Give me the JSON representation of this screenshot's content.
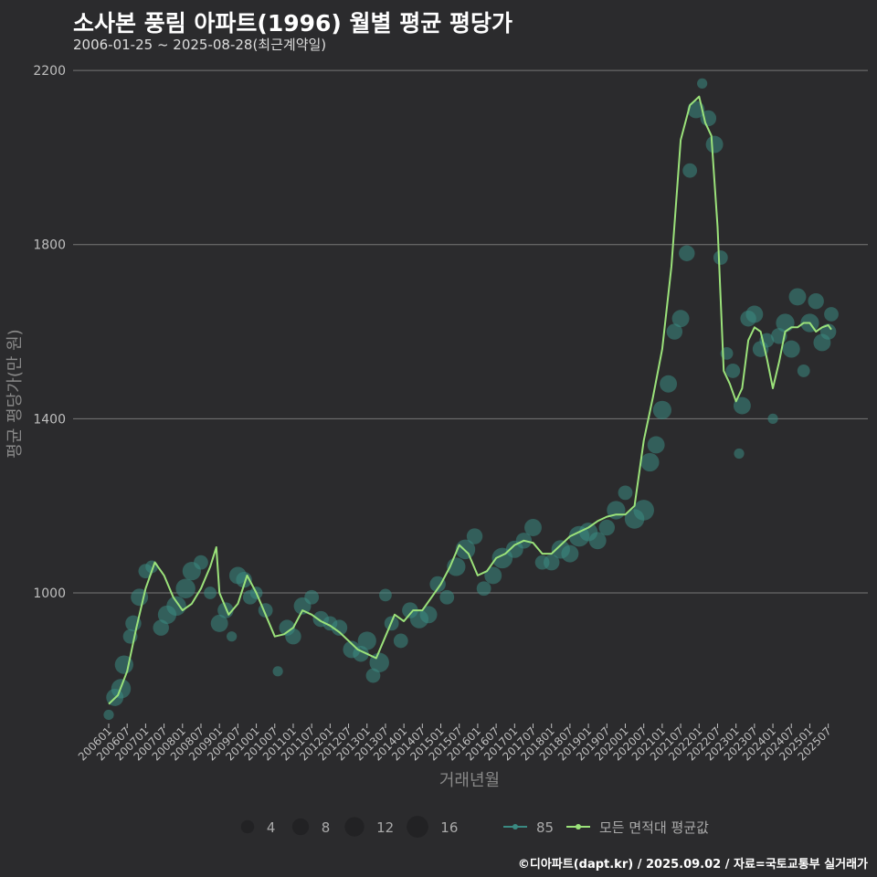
{
  "title": "소사본 풍림 아파트(1996) 월별 평균 평당가",
  "subtitle": "2006-01-25 ~ 2025-08-28(최근계약일)",
  "credit": "©디아파트(dapt.kr) / 2025.09.02 / 자료=국토교통부 실거래가",
  "colors": {
    "background": "#2b2b2d",
    "grid": "#777777",
    "line": "#9be27a",
    "bubble": "#3a8a82"
  },
  "chart_data": {
    "type": "line",
    "title": "소사본 풍림 아파트(1996) 월별 평균 평당가",
    "xlabel": "거래년월",
    "ylabel": "평균 평당가(만 원)",
    "ylim": [
      700,
      2240
    ],
    "yticks": [
      1000,
      1400,
      1800,
      2200
    ],
    "xticks": [
      "200601",
      "200607",
      "200701",
      "200707",
      "200801",
      "200807",
      "200901",
      "200907",
      "201001",
      "201007",
      "201101",
      "201107",
      "201201",
      "201207",
      "201301",
      "201307",
      "201401",
      "201407",
      "201501",
      "201507",
      "201601",
      "201607",
      "201701",
      "201707",
      "201801",
      "201807",
      "201901",
      "201907",
      "202001",
      "202007",
      "202101",
      "202107",
      "202201",
      "202207",
      "202301",
      "202307",
      "202401",
      "202407",
      "202501",
      "202507"
    ],
    "grid": true,
    "legend": {
      "size_title": "",
      "sizes": [
        {
          "label": "4",
          "value": 4
        },
        {
          "label": "8",
          "value": 8
        },
        {
          "label": "12",
          "value": 12
        },
        {
          "label": "16",
          "value": 16
        }
      ],
      "series": [
        {
          "label": "85",
          "kind": "bubble"
        },
        {
          "label": "모든 면적대 평균값",
          "kind": "line"
        }
      ]
    },
    "series": [
      {
        "name": "모든 면적대 평균값",
        "x": [
          "2006-01",
          "2006-04",
          "2006-07",
          "2006-10",
          "2007-01",
          "2007-04",
          "2007-07",
          "2007-10",
          "2008-01",
          "2008-04",
          "2008-07",
          "2008-10",
          "2008-12",
          "2009-01",
          "2009-04",
          "2009-07",
          "2009-10",
          "2010-01",
          "2010-04",
          "2010-07",
          "2010-10",
          "2011-01",
          "2011-04",
          "2011-07",
          "2011-10",
          "2012-01",
          "2012-04",
          "2012-07",
          "2012-10",
          "2013-01",
          "2013-04",
          "2013-07",
          "2013-10",
          "2014-01",
          "2014-04",
          "2014-07",
          "2014-10",
          "2015-01",
          "2015-04",
          "2015-07",
          "2015-10",
          "2016-01",
          "2016-04",
          "2016-07",
          "2016-10",
          "2017-01",
          "2017-04",
          "2017-07",
          "2017-10",
          "2018-01",
          "2018-04",
          "2018-07",
          "2018-10",
          "2019-01",
          "2019-04",
          "2019-07",
          "2019-10",
          "2020-01",
          "2020-04",
          "2020-07",
          "2020-10",
          "2021-01",
          "2021-04",
          "2021-07",
          "2021-10",
          "2022-01",
          "2022-03",
          "2022-05",
          "2022-07",
          "2022-09",
          "2022-11",
          "2023-01",
          "2023-03",
          "2023-05",
          "2023-07",
          "2023-09",
          "2023-11",
          "2024-01",
          "2024-03",
          "2024-05",
          "2024-07",
          "2024-09",
          "2024-11",
          "2025-01",
          "2025-03",
          "2025-05",
          "2025-07",
          "2025-08"
        ],
        "values": [
          745,
          765,
          820,
          920,
          1010,
          1070,
          1040,
          990,
          960,
          975,
          1010,
          1060,
          1105,
          1000,
          950,
          975,
          1040,
          1000,
          950,
          900,
          905,
          920,
          960,
          950,
          935,
          925,
          910,
          890,
          870,
          860,
          850,
          900,
          950,
          935,
          960,
          960,
          990,
          1020,
          1060,
          1110,
          1090,
          1040,
          1050,
          1080,
          1090,
          1110,
          1120,
          1115,
          1090,
          1090,
          1110,
          1130,
          1140,
          1150,
          1165,
          1175,
          1180,
          1180,
          1200,
          1350,
          1450,
          1560,
          1750,
          2040,
          2120,
          2140,
          2080,
          2050,
          1840,
          1510,
          1480,
          1440,
          1470,
          1580,
          1610,
          1600,
          1540,
          1470,
          1530,
          1600,
          1610,
          1610,
          1620,
          1620,
          1600,
          1610,
          1615,
          1605
        ]
      },
      {
        "name": "85",
        "points": [
          {
            "x": "2006-01",
            "y": 720,
            "n": 2
          },
          {
            "x": "2006-03",
            "y": 760,
            "n": 10
          },
          {
            "x": "2006-05",
            "y": 780,
            "n": 14
          },
          {
            "x": "2006-06",
            "y": 835,
            "n": 12
          },
          {
            "x": "2006-08",
            "y": 900,
            "n": 6
          },
          {
            "x": "2006-09",
            "y": 930,
            "n": 8
          },
          {
            "x": "2006-11",
            "y": 990,
            "n": 10
          },
          {
            "x": "2007-01",
            "y": 1050,
            "n": 6
          },
          {
            "x": "2007-03",
            "y": 1060,
            "n": 4
          },
          {
            "x": "2007-06",
            "y": 920,
            "n": 8
          },
          {
            "x": "2007-08",
            "y": 950,
            "n": 12
          },
          {
            "x": "2007-11",
            "y": 970,
            "n": 14
          },
          {
            "x": "2008-02",
            "y": 1010,
            "n": 14
          },
          {
            "x": "2008-04",
            "y": 1050,
            "n": 12
          },
          {
            "x": "2008-07",
            "y": 1070,
            "n": 6
          },
          {
            "x": "2008-10",
            "y": 1000,
            "n": 4
          },
          {
            "x": "2009-01",
            "y": 930,
            "n": 10
          },
          {
            "x": "2009-03",
            "y": 960,
            "n": 8
          },
          {
            "x": "2009-05",
            "y": 900,
            "n": 2
          },
          {
            "x": "2009-07",
            "y": 1040,
            "n": 10
          },
          {
            "x": "2009-09",
            "y": 1030,
            "n": 8
          },
          {
            "x": "2009-11",
            "y": 990,
            "n": 6
          },
          {
            "x": "2010-01",
            "y": 1000,
            "n": 4
          },
          {
            "x": "2010-04",
            "y": 960,
            "n": 6
          },
          {
            "x": "2010-08",
            "y": 820,
            "n": 2
          },
          {
            "x": "2010-11",
            "y": 920,
            "n": 8
          },
          {
            "x": "2011-01",
            "y": 900,
            "n": 8
          },
          {
            "x": "2011-04",
            "y": 970,
            "n": 10
          },
          {
            "x": "2011-07",
            "y": 990,
            "n": 6
          },
          {
            "x": "2011-10",
            "y": 940,
            "n": 8
          },
          {
            "x": "2012-01",
            "y": 930,
            "n": 6
          },
          {
            "x": "2012-04",
            "y": 920,
            "n": 8
          },
          {
            "x": "2012-08",
            "y": 870,
            "n": 10
          },
          {
            "x": "2012-11",
            "y": 860,
            "n": 8
          },
          {
            "x": "2013-01",
            "y": 890,
            "n": 12
          },
          {
            "x": "2013-03",
            "y": 810,
            "n": 6
          },
          {
            "x": "2013-05",
            "y": 840,
            "n": 14
          },
          {
            "x": "2013-07",
            "y": 995,
            "n": 4
          },
          {
            "x": "2013-09",
            "y": 930,
            "n": 6
          },
          {
            "x": "2013-12",
            "y": 890,
            "n": 6
          },
          {
            "x": "2014-03",
            "y": 960,
            "n": 8
          },
          {
            "x": "2014-06",
            "y": 940,
            "n": 12
          },
          {
            "x": "2014-09",
            "y": 950,
            "n": 10
          },
          {
            "x": "2014-12",
            "y": 1020,
            "n": 8
          },
          {
            "x": "2015-03",
            "y": 990,
            "n": 6
          },
          {
            "x": "2015-06",
            "y": 1060,
            "n": 12
          },
          {
            "x": "2015-09",
            "y": 1100,
            "n": 14
          },
          {
            "x": "2015-12",
            "y": 1130,
            "n": 8
          },
          {
            "x": "2016-03",
            "y": 1010,
            "n": 6
          },
          {
            "x": "2016-06",
            "y": 1040,
            "n": 10
          },
          {
            "x": "2016-09",
            "y": 1080,
            "n": 16
          },
          {
            "x": "2017-01",
            "y": 1100,
            "n": 10
          },
          {
            "x": "2017-04",
            "y": 1120,
            "n": 8
          },
          {
            "x": "2017-07",
            "y": 1150,
            "n": 10
          },
          {
            "x": "2017-10",
            "y": 1070,
            "n": 6
          },
          {
            "x": "2018-01",
            "y": 1070,
            "n": 8
          },
          {
            "x": "2018-04",
            "y": 1100,
            "n": 12
          },
          {
            "x": "2018-07",
            "y": 1090,
            "n": 10
          },
          {
            "x": "2018-10",
            "y": 1130,
            "n": 16
          },
          {
            "x": "2019-01",
            "y": 1140,
            "n": 12
          },
          {
            "x": "2019-04",
            "y": 1120,
            "n": 10
          },
          {
            "x": "2019-07",
            "y": 1150,
            "n": 8
          },
          {
            "x": "2019-10",
            "y": 1190,
            "n": 12
          },
          {
            "x": "2020-01",
            "y": 1230,
            "n": 6
          },
          {
            "x": "2020-04",
            "y": 1170,
            "n": 14
          },
          {
            "x": "2020-07",
            "y": 1190,
            "n": 16
          },
          {
            "x": "2020-09",
            "y": 1300,
            "n": 12
          },
          {
            "x": "2020-11",
            "y": 1340,
            "n": 10
          },
          {
            "x": "2021-01",
            "y": 1420,
            "n": 12
          },
          {
            "x": "2021-03",
            "y": 1480,
            "n": 10
          },
          {
            "x": "2021-05",
            "y": 1600,
            "n": 8
          },
          {
            "x": "2021-07",
            "y": 1630,
            "n": 10
          },
          {
            "x": "2021-09",
            "y": 1780,
            "n": 8
          },
          {
            "x": "2021-10",
            "y": 1970,
            "n": 6
          },
          {
            "x": "2021-12",
            "y": 2110,
            "n": 10
          },
          {
            "x": "2022-02",
            "y": 2170,
            "n": 2
          },
          {
            "x": "2022-04",
            "y": 2090,
            "n": 8
          },
          {
            "x": "2022-06",
            "y": 2030,
            "n": 10
          },
          {
            "x": "2022-08",
            "y": 1770,
            "n": 6
          },
          {
            "x": "2022-10",
            "y": 1550,
            "n": 4
          },
          {
            "x": "2022-12",
            "y": 1510,
            "n": 6
          },
          {
            "x": "2023-02",
            "y": 1320,
            "n": 2
          },
          {
            "x": "2023-03",
            "y": 1430,
            "n": 10
          },
          {
            "x": "2023-05",
            "y": 1630,
            "n": 8
          },
          {
            "x": "2023-07",
            "y": 1640,
            "n": 10
          },
          {
            "x": "2023-09",
            "y": 1560,
            "n": 8
          },
          {
            "x": "2023-11",
            "y": 1580,
            "n": 6
          },
          {
            "x": "2024-01",
            "y": 1400,
            "n": 2
          },
          {
            "x": "2024-03",
            "y": 1590,
            "n": 8
          },
          {
            "x": "2024-05",
            "y": 1620,
            "n": 12
          },
          {
            "x": "2024-07",
            "y": 1560,
            "n": 10
          },
          {
            "x": "2024-09",
            "y": 1680,
            "n": 10
          },
          {
            "x": "2024-11",
            "y": 1510,
            "n": 4
          },
          {
            "x": "2025-01",
            "y": 1620,
            "n": 12
          },
          {
            "x": "2025-03",
            "y": 1670,
            "n": 8
          },
          {
            "x": "2025-05",
            "y": 1575,
            "n": 10
          },
          {
            "x": "2025-07",
            "y": 1600,
            "n": 8
          },
          {
            "x": "2025-08",
            "y": 1640,
            "n": 6
          }
        ]
      }
    ]
  }
}
